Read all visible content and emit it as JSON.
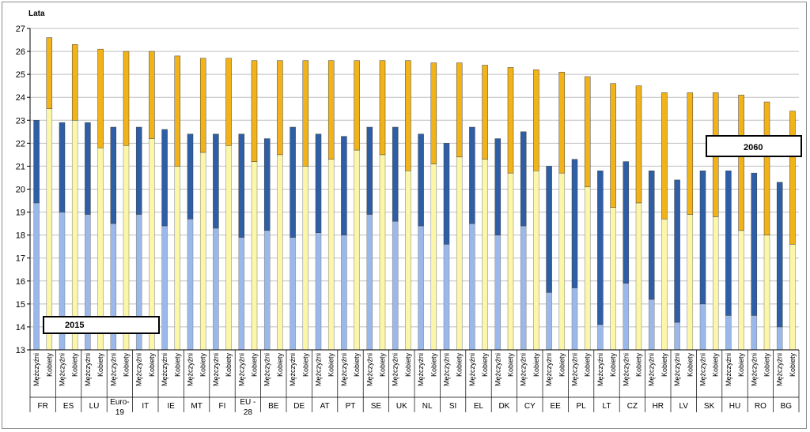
{
  "chart_data": {
    "type": "bar",
    "stacked": true,
    "title": "",
    "ylabel": "Lata",
    "xlabel": "",
    "ylim": [
      13,
      27
    ],
    "yticks": [
      13,
      14,
      15,
      16,
      17,
      18,
      19,
      20,
      21,
      22,
      23,
      24,
      25,
      26,
      27
    ],
    "grid": true,
    "sex_labels": [
      "Mężczyźni",
      "Kobiety"
    ],
    "annotations": {
      "year_2015": "2015",
      "year_2060": "2060"
    },
    "series": [
      {
        "name": "Mężczyźni 2015",
        "color": "#9ab9ea"
      },
      {
        "name": "Mężczyźni 2060",
        "color": "#2e5ea6"
      },
      {
        "name": "Kobiety 2015",
        "color": "#fbf6a8"
      },
      {
        "name": "Kobiety 2060",
        "color": "#f2b319"
      }
    ],
    "countries": [
      {
        "code": "FR",
        "men_2015": 19.4,
        "men_2060": 23.0,
        "women_2015": 23.5,
        "women_2060": 26.6
      },
      {
        "code": "ES",
        "men_2015": 19.0,
        "men_2060": 22.9,
        "women_2015": 23.0,
        "women_2060": 26.3
      },
      {
        "code": "LU",
        "men_2015": 18.9,
        "men_2060": 22.9,
        "women_2015": 21.8,
        "women_2060": 26.1
      },
      {
        "code": "Euro-19",
        "men_2015": 18.5,
        "men_2060": 22.7,
        "women_2015": 21.9,
        "women_2060": 26.0
      },
      {
        "code": "IT",
        "men_2015": 18.9,
        "men_2060": 22.7,
        "women_2015": 22.2,
        "women_2060": 26.0
      },
      {
        "code": "IE",
        "men_2015": 18.4,
        "men_2060": 22.6,
        "women_2015": 21.0,
        "women_2060": 25.8
      },
      {
        "code": "MT",
        "men_2015": 18.7,
        "men_2060": 22.4,
        "women_2015": 21.6,
        "women_2060": 25.7
      },
      {
        "code": "FI",
        "men_2015": 18.3,
        "men_2060": 22.4,
        "women_2015": 21.9,
        "women_2060": 25.7
      },
      {
        "code": "EU - 28",
        "men_2015": 17.9,
        "men_2060": 22.4,
        "women_2015": 21.2,
        "women_2060": 25.6
      },
      {
        "code": "BE",
        "men_2015": 18.2,
        "men_2060": 22.2,
        "women_2015": 21.5,
        "women_2060": 25.6
      },
      {
        "code": "DE",
        "men_2015": 17.9,
        "men_2060": 22.7,
        "women_2015": 21.0,
        "women_2060": 25.6
      },
      {
        "code": "AT",
        "men_2015": 18.1,
        "men_2060": 22.4,
        "women_2015": 21.3,
        "women_2060": 25.6
      },
      {
        "code": "PT",
        "men_2015": 18.0,
        "men_2060": 22.3,
        "women_2015": 21.7,
        "women_2060": 25.6
      },
      {
        "code": "SE",
        "men_2015": 18.9,
        "men_2060": 22.7,
        "women_2015": 21.5,
        "women_2060": 25.6
      },
      {
        "code": "UK",
        "men_2015": 18.6,
        "men_2060": 22.7,
        "women_2015": 20.8,
        "women_2060": 25.6
      },
      {
        "code": "NL",
        "men_2015": 18.4,
        "men_2060": 22.4,
        "women_2015": 21.1,
        "women_2060": 25.5
      },
      {
        "code": "SI",
        "men_2015": 17.6,
        "men_2060": 22.0,
        "women_2015": 21.4,
        "women_2060": 25.5
      },
      {
        "code": "EL",
        "men_2015": 18.5,
        "men_2060": 22.7,
        "women_2015": 21.3,
        "women_2060": 25.4
      },
      {
        "code": "DK",
        "men_2015": 18.0,
        "men_2060": 22.2,
        "women_2015": 20.7,
        "women_2060": 25.3
      },
      {
        "code": "CY",
        "men_2015": 18.4,
        "men_2060": 22.5,
        "women_2015": 20.8,
        "women_2060": 25.2
      },
      {
        "code": "EE",
        "men_2015": 15.5,
        "men_2060": 21.0,
        "women_2015": 20.7,
        "women_2060": 25.1
      },
      {
        "code": "PL",
        "men_2015": 15.7,
        "men_2060": 21.3,
        "women_2015": 20.1,
        "women_2060": 24.9
      },
      {
        "code": "LT",
        "men_2015": 14.1,
        "men_2060": 20.8,
        "women_2015": 19.2,
        "women_2060": 24.6
      },
      {
        "code": "CZ",
        "men_2015": 15.9,
        "men_2060": 21.2,
        "women_2015": 19.4,
        "women_2060": 24.5
      },
      {
        "code": "HR",
        "men_2015": 15.2,
        "men_2060": 20.8,
        "women_2015": 18.7,
        "women_2060": 24.2
      },
      {
        "code": "LV",
        "men_2015": 14.2,
        "men_2060": 20.4,
        "women_2015": 18.9,
        "women_2060": 24.2
      },
      {
        "code": "SK",
        "men_2015": 15.0,
        "men_2060": 20.8,
        "women_2015": 18.8,
        "women_2060": 24.2
      },
      {
        "code": "HU",
        "men_2015": 14.5,
        "men_2060": 20.8,
        "women_2015": 18.2,
        "women_2060": 24.1
      },
      {
        "code": "RO",
        "men_2015": 14.5,
        "men_2060": 20.7,
        "women_2015": 18.0,
        "women_2060": 23.8
      },
      {
        "code": "BG",
        "men_2015": 14.0,
        "men_2060": 20.3,
        "women_2015": 17.6,
        "women_2060": 23.4
      }
    ]
  }
}
